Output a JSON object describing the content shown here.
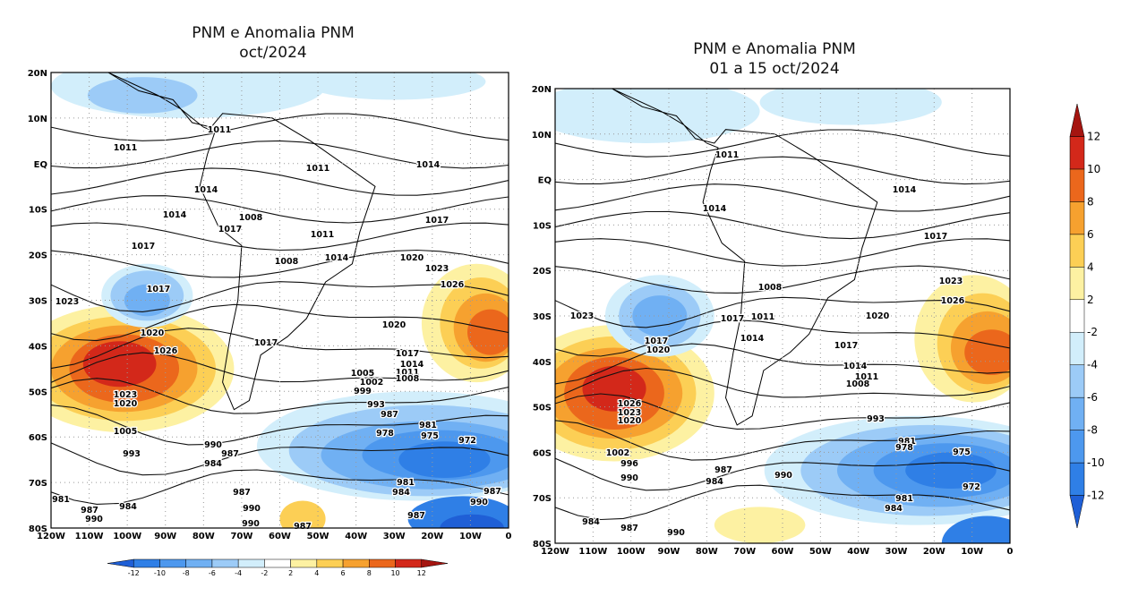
{
  "panels": [
    {
      "title": [
        "PNM e Anomalia PNM",
        "oct/2024"
      ],
      "lat_ticks": [
        "20N",
        "10N",
        "EQ",
        "10S",
        "20S",
        "30S",
        "40S",
        "50S",
        "60S",
        "70S",
        "80S"
      ],
      "lon_ticks": [
        "120W",
        "110W",
        "100W",
        "90W",
        "80W",
        "70W",
        "60W",
        "50W",
        "40W",
        "30W",
        "20W",
        "10W",
        "0"
      ],
      "contour_labels": [
        1011,
        1011,
        1011,
        1014,
        1014,
        1014,
        1008,
        1017,
        1017,
        1011,
        1014,
        1008,
        1017,
        1020,
        1023,
        1026,
        1017,
        1023,
        1020,
        1020,
        1026,
        1017,
        1017,
        1014,
        1005,
        1011,
        1002,
        1008,
        999,
        1023,
        1020,
        993,
        987,
        981,
        978,
        1005,
        975,
        972,
        990,
        987,
        993,
        984,
        981,
        984,
        987,
        981,
        987,
        990,
        984,
        987,
        990,
        987,
        990,
        990,
        987
      ]
    },
    {
      "title": [
        "PNM e Anomalia PNM",
        "01 a 15 oct/2024"
      ],
      "lat_ticks": [
        "20N",
        "10N",
        "EQ",
        "10S",
        "20S",
        "30S",
        "40S",
        "50S",
        "60S",
        "70S",
        "80S"
      ],
      "lon_ticks": [
        "120W",
        "110W",
        "100W",
        "90W",
        "80W",
        "70W",
        "60W",
        "50W",
        "40W",
        "30W",
        "20W",
        "10W",
        "0"
      ],
      "contour_labels": [
        1011,
        1014,
        1014,
        1017,
        1023,
        1026,
        1023,
        1020,
        1008,
        1017,
        1011,
        1014,
        1017,
        1020,
        1017,
        1014,
        1011,
        1008,
        1026,
        1023,
        1020,
        993,
        981,
        978,
        975,
        972,
        987,
        984,
        990,
        981,
        984,
        984,
        987,
        990,
        1002,
        996,
        990
      ]
    }
  ],
  "colorbar": {
    "labels": [
      -12,
      -10,
      -8,
      -6,
      -4,
      -2,
      2,
      4,
      6,
      8,
      10,
      12
    ],
    "colors": [
      "#1f5fd6",
      "#2f7fe6",
      "#4d98ee",
      "#70b0f3",
      "#9ccbf7",
      "#d2eefb",
      "#ffffff",
      "#fdf1a2",
      "#fccf55",
      "#f6a12f",
      "#eb671c",
      "#d3281a",
      "#a51510"
    ]
  }
}
